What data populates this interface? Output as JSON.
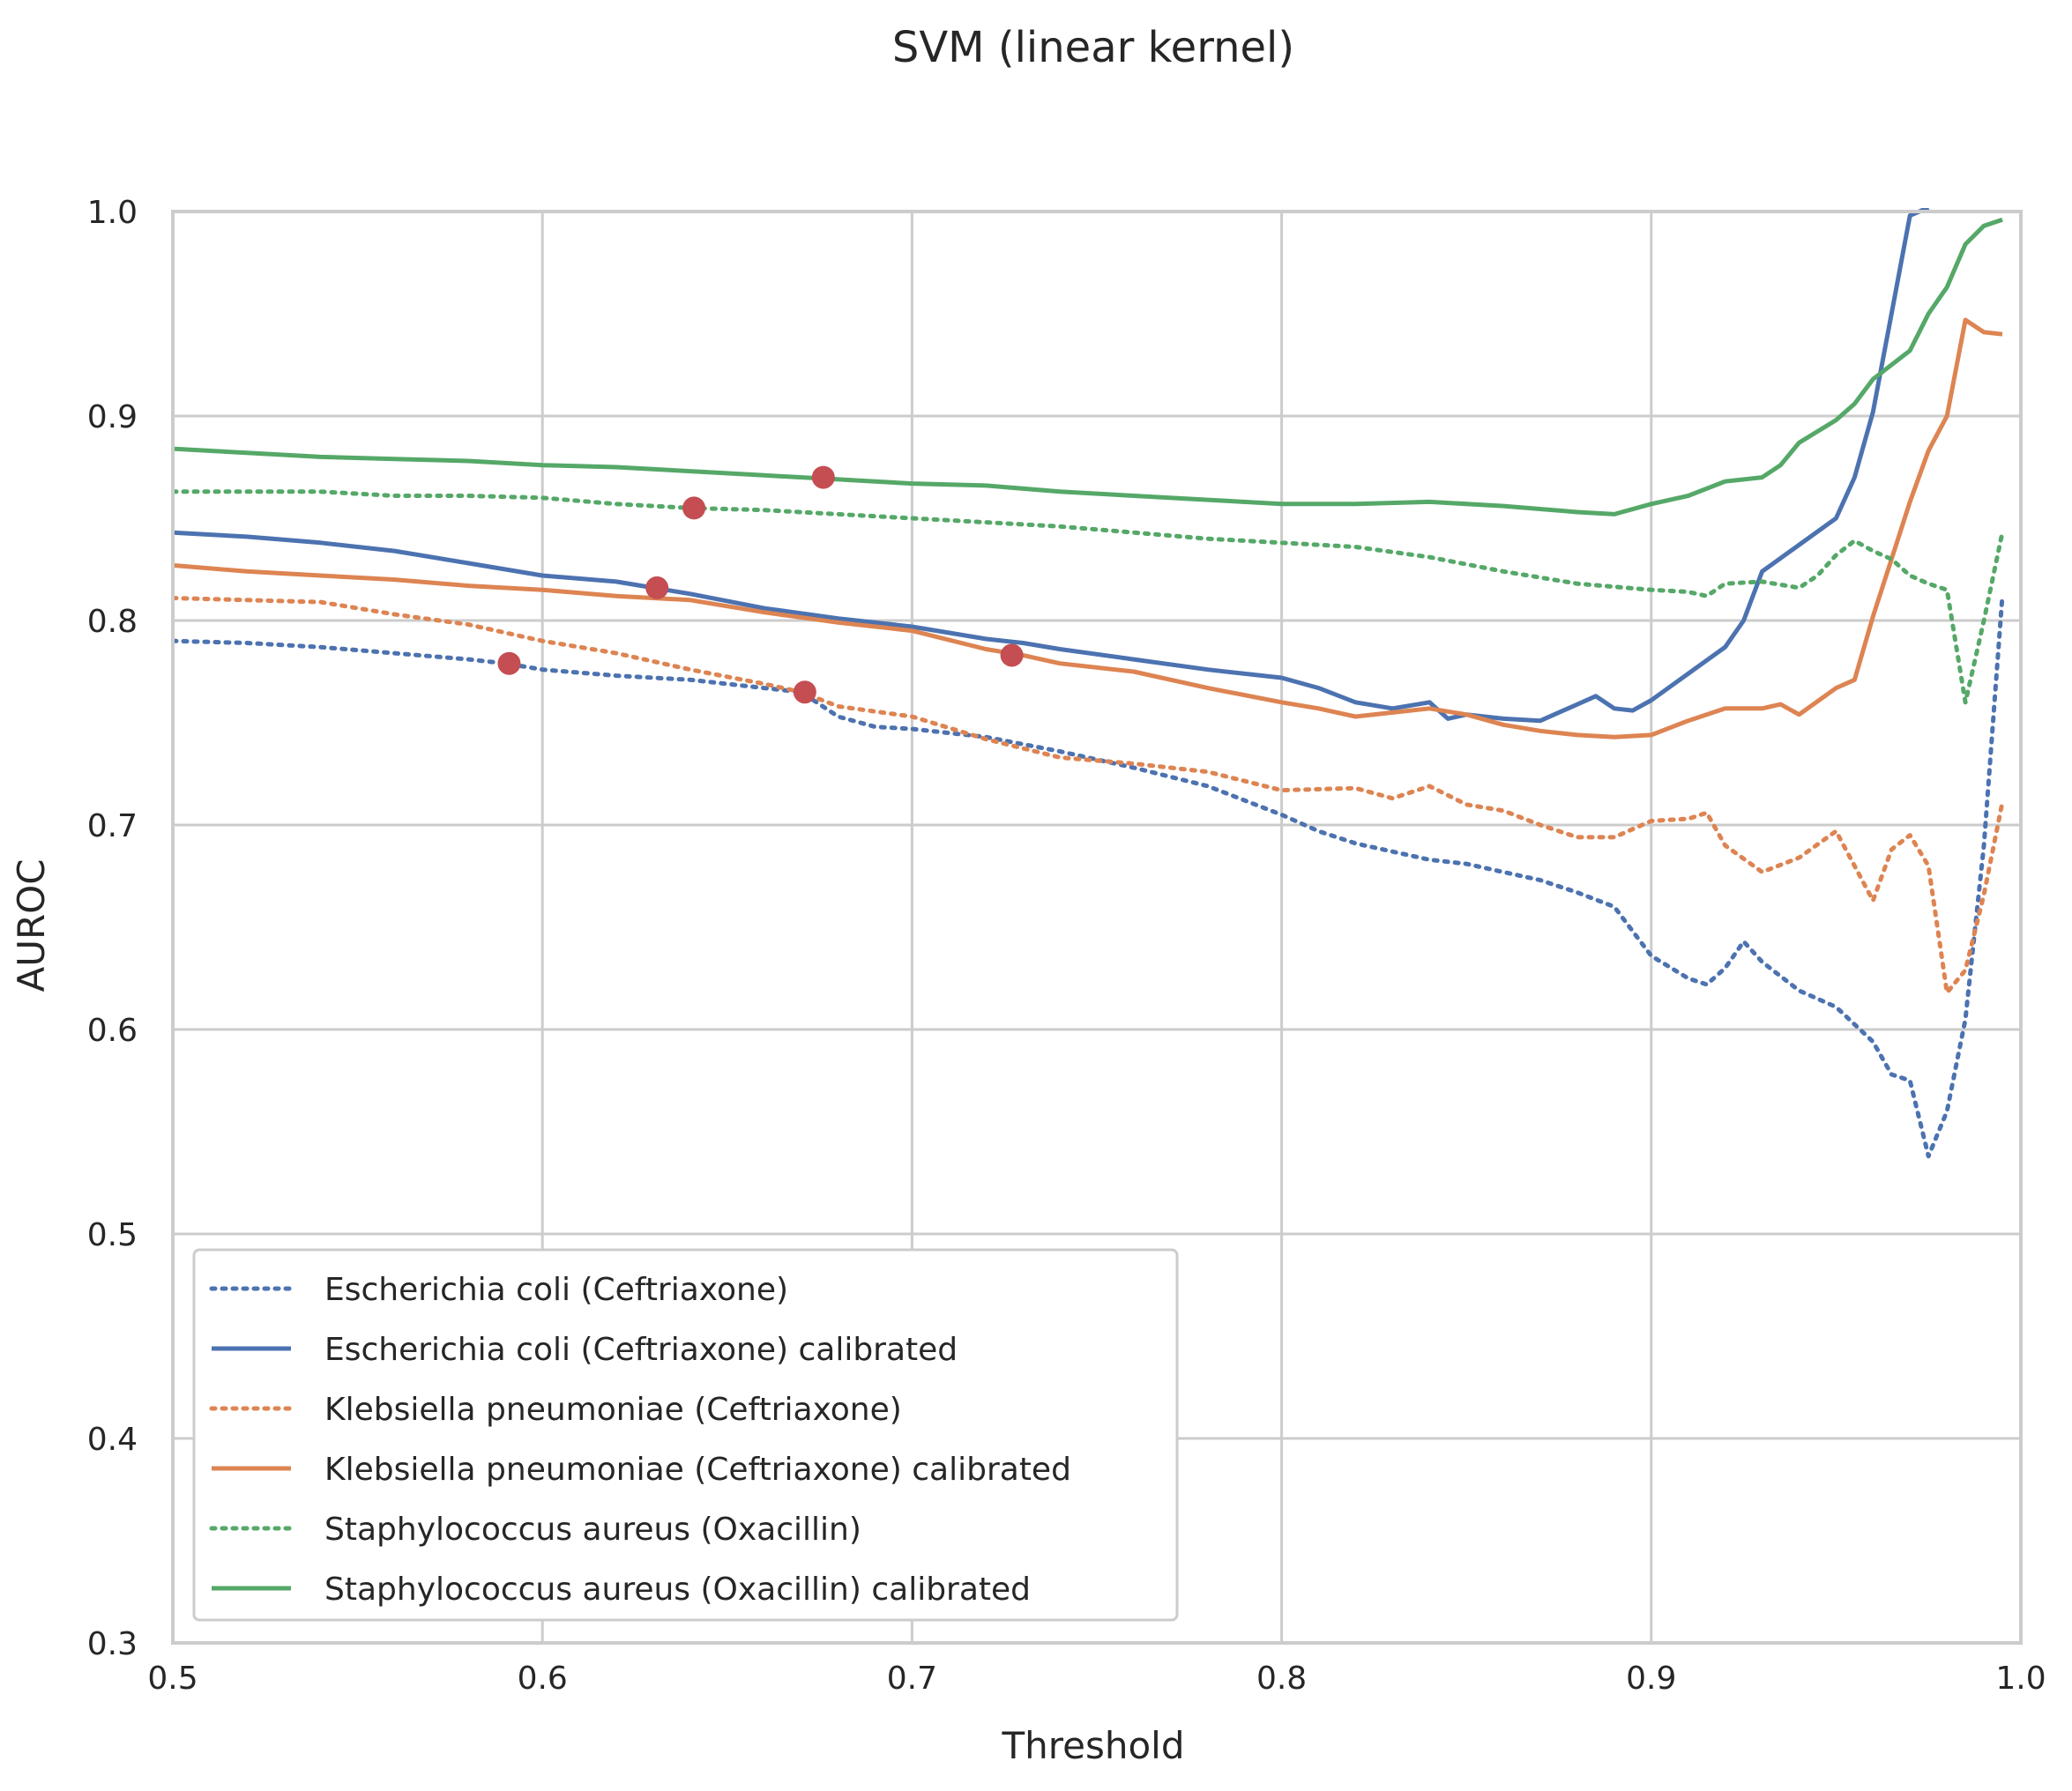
{
  "chart_data": {
    "type": "line",
    "title": "SVM (linear kernel)",
    "xlabel": "Threshold",
    "ylabel": "AUROC",
    "xlim": [
      0.5,
      1.0
    ],
    "ylim": [
      0.3,
      1.0
    ],
    "xticks": [
      "0.5",
      "0.6",
      "0.7",
      "0.8",
      "0.9",
      "1.0"
    ],
    "yticks": [
      "0.3",
      "0.4",
      "0.5",
      "0.6",
      "0.7",
      "0.8",
      "0.9",
      "1.0"
    ],
    "grid": true,
    "legend_position": "lower-left",
    "series": [
      {
        "name": "Escherichia coli (Ceftriaxone)",
        "color": "#4c72b0",
        "style": "dotted",
        "points": [
          [
            0.5,
            0.79
          ],
          [
            0.52,
            0.789
          ],
          [
            0.54,
            0.787
          ],
          [
            0.56,
            0.784
          ],
          [
            0.58,
            0.781
          ],
          [
            0.59,
            0.779
          ],
          [
            0.6,
            0.776
          ],
          [
            0.62,
            0.773
          ],
          [
            0.64,
            0.771
          ],
          [
            0.66,
            0.767
          ],
          [
            0.67,
            0.765
          ],
          [
            0.68,
            0.753
          ],
          [
            0.69,
            0.748
          ],
          [
            0.7,
            0.747
          ],
          [
            0.72,
            0.743
          ],
          [
            0.74,
            0.736
          ],
          [
            0.76,
            0.728
          ],
          [
            0.78,
            0.719
          ],
          [
            0.8,
            0.705
          ],
          [
            0.81,
            0.697
          ],
          [
            0.82,
            0.691
          ],
          [
            0.83,
            0.687
          ],
          [
            0.84,
            0.683
          ],
          [
            0.85,
            0.681
          ],
          [
            0.86,
            0.677
          ],
          [
            0.87,
            0.673
          ],
          [
            0.88,
            0.667
          ],
          [
            0.89,
            0.66
          ],
          [
            0.9,
            0.636
          ],
          [
            0.91,
            0.625
          ],
          [
            0.915,
            0.622
          ],
          [
            0.92,
            0.63
          ],
          [
            0.925,
            0.643
          ],
          [
            0.93,
            0.633
          ],
          [
            0.94,
            0.619
          ],
          [
            0.95,
            0.611
          ],
          [
            0.96,
            0.594
          ],
          [
            0.965,
            0.578
          ],
          [
            0.97,
            0.575
          ],
          [
            0.975,
            0.538
          ],
          [
            0.98,
            0.56
          ],
          [
            0.985,
            0.605
          ],
          [
            0.99,
            0.69
          ],
          [
            0.995,
            0.812
          ]
        ]
      },
      {
        "name": "Escherichia coli (Ceftriaxone) calibrated",
        "color": "#4c72b0",
        "style": "solid",
        "points": [
          [
            0.5,
            0.843
          ],
          [
            0.52,
            0.841
          ],
          [
            0.54,
            0.838
          ],
          [
            0.56,
            0.834
          ],
          [
            0.58,
            0.828
          ],
          [
            0.6,
            0.822
          ],
          [
            0.62,
            0.819
          ],
          [
            0.63,
            0.816
          ],
          [
            0.64,
            0.813
          ],
          [
            0.66,
            0.806
          ],
          [
            0.68,
            0.801
          ],
          [
            0.7,
            0.797
          ],
          [
            0.72,
            0.791
          ],
          [
            0.73,
            0.789
          ],
          [
            0.74,
            0.786
          ],
          [
            0.76,
            0.781
          ],
          [
            0.78,
            0.776
          ],
          [
            0.8,
            0.772
          ],
          [
            0.81,
            0.767
          ],
          [
            0.82,
            0.76
          ],
          [
            0.83,
            0.757
          ],
          [
            0.84,
            0.76
          ],
          [
            0.845,
            0.752
          ],
          [
            0.85,
            0.754
          ],
          [
            0.86,
            0.752
          ],
          [
            0.87,
            0.751
          ],
          [
            0.88,
            0.759
          ],
          [
            0.885,
            0.763
          ],
          [
            0.89,
            0.757
          ],
          [
            0.895,
            0.756
          ],
          [
            0.9,
            0.761
          ],
          [
            0.91,
            0.774
          ],
          [
            0.92,
            0.787
          ],
          [
            0.925,
            0.8
          ],
          [
            0.93,
            0.824
          ],
          [
            0.94,
            0.837
          ],
          [
            0.95,
            0.85
          ],
          [
            0.955,
            0.87
          ],
          [
            0.96,
            0.902
          ],
          [
            0.965,
            0.95
          ],
          [
            0.97,
            0.998
          ],
          [
            0.975,
            1.002
          ]
        ]
      },
      {
        "name": "Klebsiella pneumoniae (Ceftriaxone)",
        "color": "#dd8452",
        "style": "dotted",
        "points": [
          [
            0.5,
            0.811
          ],
          [
            0.52,
            0.81
          ],
          [
            0.54,
            0.809
          ],
          [
            0.56,
            0.803
          ],
          [
            0.58,
            0.798
          ],
          [
            0.59,
            0.794
          ],
          [
            0.6,
            0.79
          ],
          [
            0.62,
            0.784
          ],
          [
            0.64,
            0.776
          ],
          [
            0.66,
            0.769
          ],
          [
            0.67,
            0.765
          ],
          [
            0.68,
            0.758
          ],
          [
            0.7,
            0.753
          ],
          [
            0.72,
            0.742
          ],
          [
            0.74,
            0.733
          ],
          [
            0.76,
            0.73
          ],
          [
            0.78,
            0.726
          ],
          [
            0.8,
            0.717
          ],
          [
            0.82,
            0.718
          ],
          [
            0.83,
            0.713
          ],
          [
            0.84,
            0.719
          ],
          [
            0.85,
            0.71
          ],
          [
            0.86,
            0.707
          ],
          [
            0.87,
            0.7
          ],
          [
            0.88,
            0.694
          ],
          [
            0.89,
            0.694
          ],
          [
            0.9,
            0.702
          ],
          [
            0.91,
            0.703
          ],
          [
            0.915,
            0.706
          ],
          [
            0.92,
            0.69
          ],
          [
            0.93,
            0.677
          ],
          [
            0.94,
            0.684
          ],
          [
            0.95,
            0.697
          ],
          [
            0.955,
            0.68
          ],
          [
            0.96,
            0.663
          ],
          [
            0.965,
            0.688
          ],
          [
            0.97,
            0.695
          ],
          [
            0.975,
            0.68
          ],
          [
            0.98,
            0.618
          ],
          [
            0.985,
            0.629
          ],
          [
            0.99,
            0.666
          ],
          [
            0.995,
            0.711
          ]
        ]
      },
      {
        "name": "Klebsiella pneumoniae (Ceftriaxone) calibrated",
        "color": "#dd8452",
        "style": "solid",
        "points": [
          [
            0.5,
            0.827
          ],
          [
            0.52,
            0.824
          ],
          [
            0.54,
            0.822
          ],
          [
            0.56,
            0.82
          ],
          [
            0.58,
            0.817
          ],
          [
            0.6,
            0.815
          ],
          [
            0.62,
            0.812
          ],
          [
            0.64,
            0.81
          ],
          [
            0.66,
            0.804
          ],
          [
            0.68,
            0.799
          ],
          [
            0.7,
            0.795
          ],
          [
            0.72,
            0.786
          ],
          [
            0.73,
            0.783
          ],
          [
            0.74,
            0.779
          ],
          [
            0.76,
            0.775
          ],
          [
            0.78,
            0.767
          ],
          [
            0.8,
            0.76
          ],
          [
            0.81,
            0.757
          ],
          [
            0.82,
            0.753
          ],
          [
            0.83,
            0.755
          ],
          [
            0.84,
            0.757
          ],
          [
            0.85,
            0.754
          ],
          [
            0.86,
            0.749
          ],
          [
            0.87,
            0.746
          ],
          [
            0.88,
            0.744
          ],
          [
            0.89,
            0.743
          ],
          [
            0.9,
            0.744
          ],
          [
            0.91,
            0.751
          ],
          [
            0.92,
            0.757
          ],
          [
            0.93,
            0.757
          ],
          [
            0.935,
            0.759
          ],
          [
            0.94,
            0.754
          ],
          [
            0.95,
            0.767
          ],
          [
            0.955,
            0.771
          ],
          [
            0.96,
            0.802
          ],
          [
            0.965,
            0.83
          ],
          [
            0.97,
            0.858
          ],
          [
            0.975,
            0.883
          ],
          [
            0.98,
            0.9
          ],
          [
            0.985,
            0.947
          ],
          [
            0.99,
            0.941
          ],
          [
            0.995,
            0.94
          ]
        ]
      },
      {
        "name": "Staphylococcus aureus (Oxacillin)",
        "color": "#55a868",
        "style": "dotted",
        "points": [
          [
            0.5,
            0.863
          ],
          [
            0.52,
            0.863
          ],
          [
            0.54,
            0.863
          ],
          [
            0.56,
            0.861
          ],
          [
            0.58,
            0.861
          ],
          [
            0.6,
            0.86
          ],
          [
            0.62,
            0.857
          ],
          [
            0.64,
            0.855
          ],
          [
            0.66,
            0.854
          ],
          [
            0.68,
            0.852
          ],
          [
            0.7,
            0.85
          ],
          [
            0.72,
            0.848
          ],
          [
            0.74,
            0.846
          ],
          [
            0.76,
            0.843
          ],
          [
            0.78,
            0.84
          ],
          [
            0.8,
            0.838
          ],
          [
            0.82,
            0.836
          ],
          [
            0.84,
            0.831
          ],
          [
            0.86,
            0.824
          ],
          [
            0.88,
            0.818
          ],
          [
            0.9,
            0.815
          ],
          [
            0.91,
            0.814
          ],
          [
            0.915,
            0.812
          ],
          [
            0.92,
            0.818
          ],
          [
            0.93,
            0.819
          ],
          [
            0.94,
            0.816
          ],
          [
            0.945,
            0.822
          ],
          [
            0.95,
            0.832
          ],
          [
            0.955,
            0.839
          ],
          [
            0.96,
            0.834
          ],
          [
            0.965,
            0.83
          ],
          [
            0.97,
            0.822
          ],
          [
            0.975,
            0.818
          ],
          [
            0.98,
            0.815
          ],
          [
            0.985,
            0.76
          ],
          [
            0.99,
            0.8
          ],
          [
            0.995,
            0.843
          ]
        ]
      },
      {
        "name": "Staphylococcus aureus (Oxacillin) calibrated",
        "color": "#55a868",
        "style": "solid",
        "points": [
          [
            0.5,
            0.884
          ],
          [
            0.52,
            0.882
          ],
          [
            0.54,
            0.88
          ],
          [
            0.56,
            0.879
          ],
          [
            0.58,
            0.878
          ],
          [
            0.6,
            0.876
          ],
          [
            0.62,
            0.875
          ],
          [
            0.64,
            0.873
          ],
          [
            0.66,
            0.871
          ],
          [
            0.68,
            0.869
          ],
          [
            0.7,
            0.867
          ],
          [
            0.72,
            0.866
          ],
          [
            0.74,
            0.863
          ],
          [
            0.76,
            0.861
          ],
          [
            0.78,
            0.859
          ],
          [
            0.8,
            0.857
          ],
          [
            0.82,
            0.857
          ],
          [
            0.84,
            0.858
          ],
          [
            0.86,
            0.856
          ],
          [
            0.88,
            0.853
          ],
          [
            0.89,
            0.852
          ],
          [
            0.9,
            0.857
          ],
          [
            0.91,
            0.861
          ],
          [
            0.92,
            0.868
          ],
          [
            0.93,
            0.87
          ],
          [
            0.935,
            0.876
          ],
          [
            0.94,
            0.887
          ],
          [
            0.95,
            0.898
          ],
          [
            0.955,
            0.906
          ],
          [
            0.96,
            0.918
          ],
          [
            0.97,
            0.932
          ],
          [
            0.975,
            0.95
          ],
          [
            0.98,
            0.963
          ],
          [
            0.985,
            0.984
          ],
          [
            0.99,
            0.993
          ],
          [
            0.995,
            0.996
          ]
        ]
      }
    ],
    "markers": {
      "color": "#c44e52",
      "points": [
        [
          0.591,
          0.779
        ],
        [
          0.671,
          0.765
        ],
        [
          0.631,
          0.816
        ],
        [
          0.727,
          0.783
        ],
        [
          0.641,
          0.855
        ],
        [
          0.676,
          0.87
        ]
      ]
    }
  }
}
